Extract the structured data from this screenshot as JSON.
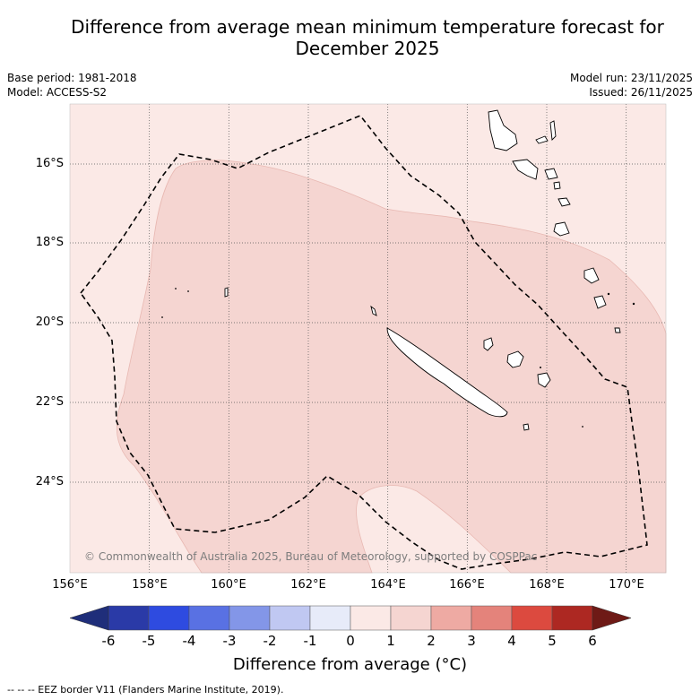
{
  "title": {
    "line1": "Difference from average mean minimum temperature forecast for",
    "line2": "December 2025"
  },
  "meta_left": {
    "base_period": "Base period: 1981-2018",
    "model": "Model: ACCESS-S2"
  },
  "meta_right": {
    "model_run": "Model run: 23/11/2025",
    "issued": "Issued: 26/11/2025"
  },
  "map": {
    "lon_range": [
      156,
      171
    ],
    "lat_range": [
      -26.2,
      -14.5
    ],
    "lon_ticks": [
      "156°E",
      "158°E",
      "160°E",
      "162°E",
      "164°E",
      "166°E",
      "168°E",
      "170°E"
    ],
    "lat_ticks": [
      "16°S",
      "18°S",
      "20°S",
      "22°S",
      "24°S"
    ],
    "copyright": "© Commonwealth of Australia 2025, Bureau of Meteorology, supported by COSPPac"
  },
  "colorbar": {
    "title": "Difference from average (°C)",
    "ticks": [
      "-6",
      "-5",
      "-4",
      "-3",
      "-2",
      "-1",
      "0",
      "1",
      "2",
      "3",
      "4",
      "5",
      "6"
    ],
    "colors": [
      "#2a3aa7",
      "#2e4be0",
      "#5971e3",
      "#8396e8",
      "#c0c8f2",
      "#e7ebf9",
      "#fbe9e6",
      "#f5d5d1",
      "#eeaaa3",
      "#e4837b",
      "#dc4a3f",
      "#ad2822"
    ],
    "low_extend": "#1f2e7a",
    "high_extend": "#6e1a16"
  },
  "legend_note": "--  --  -- EEZ border V11 (Flanders Marine Institute, 2019)."
}
